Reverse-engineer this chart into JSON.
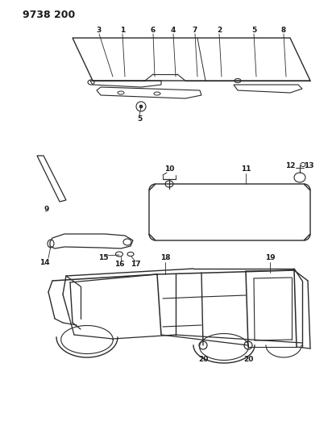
{
  "title": "9738 200",
  "background_color": "#ffffff",
  "line_color": "#2a2a2a",
  "text_color": "#1a1a1a",
  "fig_width": 4.12,
  "fig_height": 5.33,
  "dpi": 100
}
